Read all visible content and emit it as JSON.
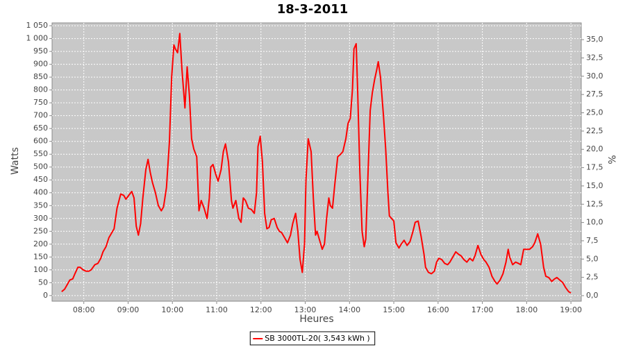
{
  "chart_data": {
    "type": "line",
    "title": "18-3-2011",
    "x_label": "Heures",
    "y_label": "Watts",
    "y2_label": "%",
    "xlim": [
      "07:17",
      "19:14"
    ],
    "xticks": [
      "08:00",
      "09:00",
      "10:00",
      "11:00",
      "12:00",
      "13:00",
      "14:00",
      "15:00",
      "16:00",
      "17:00",
      "18:00",
      "19:00"
    ],
    "ylim": [
      -22,
      1061
    ],
    "yticks": [
      0,
      50,
      100,
      150,
      200,
      250,
      300,
      350,
      400,
      450,
      500,
      550,
      600,
      650,
      700,
      750,
      800,
      850,
      900,
      950,
      {
        "value": 1000,
        "label": "1 000"
      },
      {
        "value": 1050,
        "label": "1 050"
      }
    ],
    "y2lim": [
      -0.76,
      37.29
    ],
    "y2ticks": [
      {
        "value": 0,
        "label": "0,0"
      },
      {
        "value": 2.5,
        "label": "2,5"
      },
      {
        "value": 5,
        "label": "5,0"
      },
      {
        "value": 7.5,
        "label": "7,5"
      },
      {
        "value": 10,
        "label": "10,0"
      },
      {
        "value": 12.5,
        "label": "12,5"
      },
      {
        "value": 15,
        "label": "15,0"
      },
      {
        "value": 17.5,
        "label": "17,5"
      },
      {
        "value": 20,
        "label": "20,0"
      },
      {
        "value": 22.5,
        "label": "22,5"
      },
      {
        "value": 25,
        "label": "25,0"
      },
      {
        "value": 27.5,
        "label": "27,5"
      },
      {
        "value": 30,
        "label": "30,0"
      },
      {
        "value": 32.5,
        "label": "32,5"
      },
      {
        "value": 35,
        "label": "35,0"
      }
    ],
    "grid": true,
    "plot_background": "#c8c8c8",
    "legend": "bottom",
    "x": [
      "07:30",
      "07:34",
      "07:37",
      "07:41",
      "07:45",
      "07:48",
      "07:52",
      "07:55",
      "07:59",
      "08:03",
      "08:07",
      "08:10",
      "08:15",
      "08:19",
      "08:23",
      "08:26",
      "08:30",
      "08:34",
      "08:38",
      "08:41",
      "08:45",
      "08:50",
      "08:54",
      "08:57",
      "09:01",
      "09:05",
      "09:08",
      "09:11",
      "09:14",
      "09:17",
      "09:20",
      "09:24",
      "09:27",
      "09:30",
      "09:33",
      "09:37",
      "09:41",
      "09:45",
      "09:48",
      "09:52",
      "09:56",
      "09:59",
      "10:02",
      "10:04",
      "10:07",
      "10:10",
      "10:13",
      "10:17",
      "10:20",
      "10:23",
      "10:26",
      "10:29",
      "10:33",
      "10:36",
      "10:39",
      "10:43",
      "10:47",
      "10:50",
      "10:52",
      "10:55",
      "10:59",
      "11:02",
      "11:06",
      "11:09",
      "11:12",
      "11:16",
      "11:20",
      "11:22",
      "11:26",
      "11:30",
      "11:33",
      "11:36",
      "11:39",
      "11:43",
      "11:47",
      "11:51",
      "11:54",
      "11:56",
      "11:59",
      "12:02",
      "12:05",
      "12:08",
      "12:11",
      "12:14",
      "12:18",
      "12:22",
      "12:25",
      "12:28",
      "12:32",
      "12:36",
      "12:40",
      "12:43",
      "12:47",
      "12:50",
      "12:53",
      "12:56",
      "12:59",
      "13:01",
      "13:04",
      "13:08",
      "13:11",
      "13:14",
      "13:16",
      "13:19",
      "13:23",
      "13:26",
      "13:29",
      "13:32",
      "13:34",
      "13:37",
      "13:40",
      "13:44",
      "13:48",
      "13:51",
      "13:55",
      "13:58",
      "14:01",
      "14:04",
      "14:06",
      "14:09",
      "14:11",
      "14:14",
      "14:17",
      "14:20",
      "14:22",
      "14:25",
      "14:28",
      "14:31",
      "14:34",
      "14:37",
      "14:39",
      "14:42",
      "14:46",
      "14:49",
      "14:52",
      "14:54",
      "14:57",
      "15:00",
      "15:03",
      "15:07",
      "15:10",
      "15:14",
      "15:18",
      "15:22",
      "15:26",
      "15:29",
      "15:33",
      "15:37",
      "15:41",
      "15:43",
      "15:47",
      "15:51",
      "15:55",
      "15:58",
      "16:01",
      "16:05",
      "16:09",
      "16:13",
      "16:16",
      "16:20",
      "16:24",
      "16:28",
      "16:31",
      "16:35",
      "16:39",
      "16:43",
      "16:47",
      "16:50",
      "16:54",
      "16:58",
      "17:02",
      "17:05",
      "17:09",
      "17:13",
      "17:17",
      "17:20",
      "17:24",
      "17:28",
      "17:32",
      "17:35",
      "17:37",
      "17:41",
      "17:45",
      "17:49",
      "17:52",
      "17:56",
      "18:00",
      "18:04",
      "18:08",
      "18:11",
      "18:15",
      "18:19",
      "18:23",
      "18:26",
      "18:30",
      "18:34",
      "18:38",
      "18:41",
      "18:45",
      "18:49",
      "18:53",
      "18:57",
      "19:00"
    ],
    "series": [
      {
        "name": "SB 3000TL-20( 3,543 kWh )",
        "color": "#ff0000",
        "values": [
          15,
          25,
          40,
          60,
          65,
          85,
          110,
          110,
          100,
          95,
          95,
          100,
          120,
          125,
          145,
          170,
          190,
          225,
          245,
          260,
          340,
          395,
          390,
          375,
          390,
          405,
          380,
          270,
          235,
          280,
          380,
          490,
          530,
          480,
          440,
          400,
          350,
          330,
          345,
          420,
          600,
          850,
          975,
          960,
          945,
          1020,
          880,
          730,
          890,
          780,
          610,
          570,
          540,
          330,
          370,
          340,
          300,
          380,
          500,
          510,
          470,
          445,
          490,
          560,
          590,
          520,
          370,
          340,
          370,
          300,
          285,
          380,
          370,
          340,
          335,
          320,
          400,
          580,
          620,
          520,
          320,
          260,
          265,
          295,
          300,
          265,
          250,
          245,
          225,
          205,
          235,
          280,
          320,
          250,
          140,
          90,
          200,
          450,
          610,
          560,
          380,
          235,
          250,
          220,
          180,
          200,
          300,
          380,
          350,
          340,
          430,
          540,
          550,
          560,
          610,
          670,
          690,
          800,
          960,
          980,
          800,
          480,
          250,
          190,
          220,
          470,
          720,
          790,
          840,
          880,
          910,
          850,
          700,
          570,
          400,
          310,
          300,
          290,
          205,
          185,
          200,
          215,
          195,
          210,
          250,
          285,
          290,
          230,
          160,
          110,
          90,
          85,
          95,
          130,
          145,
          140,
          125,
          120,
          130,
          150,
          170,
          160,
          155,
          140,
          130,
          145,
          135,
          155,
          195,
          160,
          140,
          130,
          110,
          75,
          55,
          45,
          60,
          85,
          130,
          180,
          150,
          120,
          130,
          125,
          120,
          180,
          180,
          180,
          190,
          205,
          240,
          200,
          110,
          75,
          70,
          55,
          65,
          70,
          60,
          50,
          30,
          15,
          10
        ]
      }
    ]
  }
}
